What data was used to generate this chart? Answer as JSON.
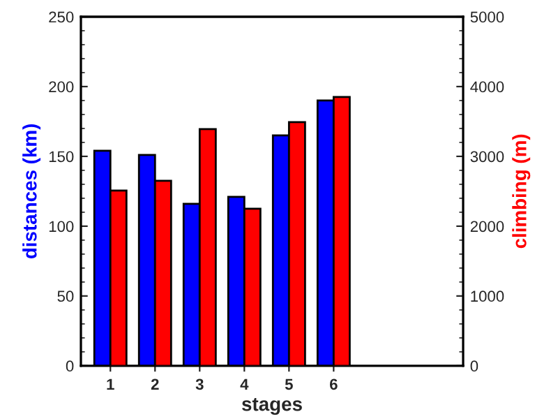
{
  "chart_data": {
    "type": "bar",
    "x": [
      1,
      2,
      3,
      4,
      5,
      6
    ],
    "xlabel": "stages",
    "ylabel": "distances (km)",
    "y2label": "climbing (m)",
    "series": [
      {
        "color": "#0000ff",
        "values": [
          154,
          151,
          116,
          121,
          165,
          190
        ]
      },
      {
        "color": "#ff0000",
        "axis": "y2",
        "values": [
          2510,
          2650,
          3390,
          2250,
          3490,
          3850
        ]
      }
    ],
    "xlim": [
      0.34,
      8.9
    ],
    "xticks": [
      1,
      2,
      3,
      4,
      5,
      6
    ],
    "ylim": [
      0,
      250
    ],
    "yticks": [
      0,
      50,
      100,
      150,
      200,
      250
    ],
    "y2lim": [
      0,
      5000
    ],
    "y2ticks": [
      0,
      1000,
      2000,
      3000,
      4000,
      5000
    ],
    "grid": false,
    "legend": false
  }
}
